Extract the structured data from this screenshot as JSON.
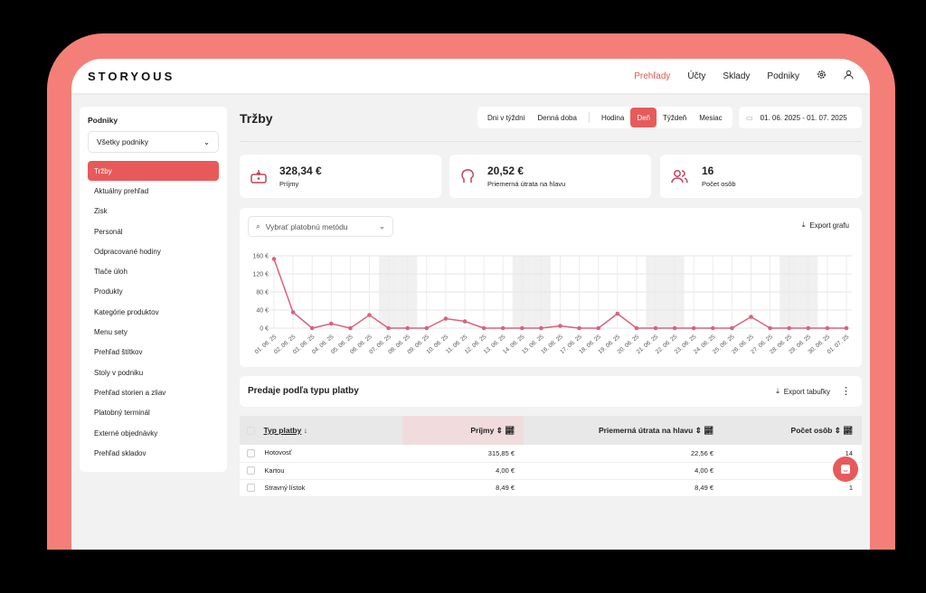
{
  "header": {
    "logo": "STORYOUS",
    "nav": [
      "Prehľady",
      "Účty",
      "Sklady",
      "Podniky"
    ],
    "active_nav": "Prehľady"
  },
  "sidebar": {
    "label": "Podniky",
    "select_value": "Všetky podniky",
    "items": [
      "Tržby",
      "Aktuálny prehľad",
      "Zisk",
      "Personál",
      "Odpracované hodiny",
      "Tlače úloh",
      "Produkty",
      "Kategórie produktov",
      "Menu sety",
      "Prehľad štítkov",
      "Stoly v podniku",
      "Prehľad storien a zliav",
      "Platobný terminál",
      "Externé objednávky",
      "Prehľad skladov"
    ],
    "active": "Tržby"
  },
  "main": {
    "title": "Tržby",
    "segments": [
      "Dni v týždni",
      "Denná doba",
      "Hodina",
      "Deň",
      "Týždeň",
      "Mesiac"
    ],
    "active_segment": "Deň",
    "date_range": "01. 06. 2025 - 01. 07. 2025",
    "kpis": [
      {
        "value": "328,34 €",
        "label": "Príjmy",
        "icon": "cash-register-icon"
      },
      {
        "value": "20,52 €",
        "label": "Priemerná útrata na hlavu",
        "icon": "head-icon"
      },
      {
        "value": "16",
        "label": "Počet osôb",
        "icon": "users-icon"
      }
    ],
    "payment_select_placeholder": "Vybrať platobnú metódu",
    "export_chart": "Export grafu",
    "table_title": "Predaje podľa typu platby",
    "export_table": "Export tabuľky",
    "columns": [
      "Typ platby",
      "Príjmy",
      "Priemerná útrata na hlavu",
      "Počet osôb"
    ],
    "rows": [
      [
        "Hotovosť",
        "315,85 €",
        "22,56 €",
        "14"
      ],
      [
        "Kartou",
        "4,00 €",
        "4,00 €",
        "1"
      ],
      [
        "Stravný lístok",
        "8,49 €",
        "8,49 €",
        "1"
      ]
    ]
  },
  "colors": {
    "accent": "#e85a5a",
    "frame": "#f47f78",
    "line": "#d9637a"
  },
  "chart_data": {
    "type": "line",
    "categories": [
      "01. 06. 25",
      "02. 06. 25",
      "03. 06. 25",
      "04. 06. 25",
      "05. 06. 25",
      "06. 06. 25",
      "07. 06. 25",
      "08. 06. 25",
      "09. 06. 25",
      "10. 06. 25",
      "11. 06. 25",
      "12. 06. 25",
      "13. 06. 25",
      "14. 06. 25",
      "15. 06. 25",
      "16. 06. 25",
      "17. 06. 25",
      "18. 06. 25",
      "19. 06. 25",
      "20. 06. 25",
      "21. 06. 25",
      "22. 06. 25",
      "23. 06. 25",
      "24. 06. 25",
      "25. 06. 25",
      "26. 06. 25",
      "27. 06. 25",
      "28. 06. 25",
      "29. 06. 25",
      "30. 06. 25",
      "01. 07. 25"
    ],
    "values": [
      153,
      35,
      0,
      10,
      0,
      29,
      0,
      0,
      0,
      21,
      15,
      0,
      0,
      0,
      0,
      5,
      0,
      0,
      32,
      0,
      0,
      0,
      0,
      0,
      0,
      25,
      0,
      0,
      0,
      0,
      0
    ],
    "yticks": [
      "0 €",
      "40 €",
      "80 €",
      "120 €",
      "160 €"
    ],
    "ylim": [
      0,
      160
    ],
    "grid": true,
    "shaded_categories": [
      6,
      7,
      13,
      14,
      20,
      21,
      27,
      28
    ]
  }
}
